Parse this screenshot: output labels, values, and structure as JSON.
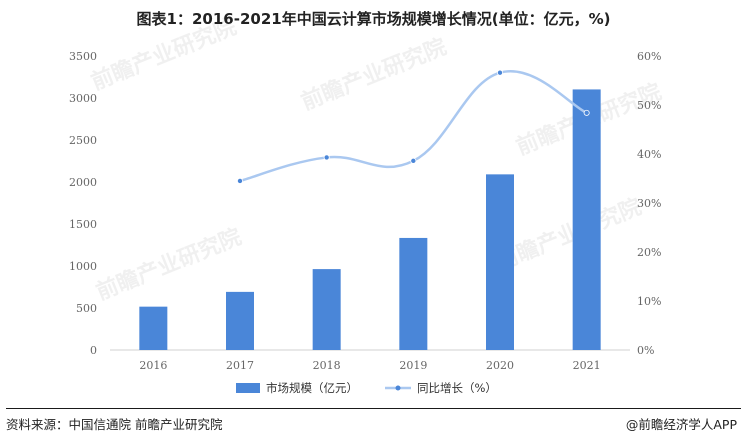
{
  "title": "图表1：2016-2021年中国云计算市场规模增长情况(单位：亿元，%)",
  "source": "资料来源：中国信通院 前瞻产业研究院",
  "brand": "@前瞻经济学人APP",
  "watermark": "前瞻产业研究院",
  "colors": {
    "bar": "#4a86d8",
    "line": "#aac8f0",
    "axis": "#d0d0d0"
  },
  "chart_data": {
    "type": "bar",
    "categories": [
      "2016",
      "2017",
      "2018",
      "2019",
      "2020",
      "2021"
    ],
    "series": [
      {
        "name": "市场规模（亿元）",
        "type": "bar",
        "axis": "left",
        "values": [
          516,
          692,
          963,
          1334,
          2091,
          3102
        ]
      },
      {
        "name": "同比增长（%）",
        "type": "line",
        "axis": "right",
        "values": [
          null,
          34.5,
          39.3,
          38.6,
          56.6,
          48.4
        ]
      }
    ],
    "ylim": [
      0,
      3500
    ],
    "y_ticks": [
      "0",
      "500",
      "1000",
      "1500",
      "2000",
      "2500",
      "3000",
      "3500"
    ],
    "y2lim": [
      0,
      60
    ],
    "y2_ticks": [
      "0%",
      "10%",
      "20%",
      "30%",
      "40%",
      "50%",
      "60%"
    ],
    "legend": "bottom",
    "grid": false
  }
}
